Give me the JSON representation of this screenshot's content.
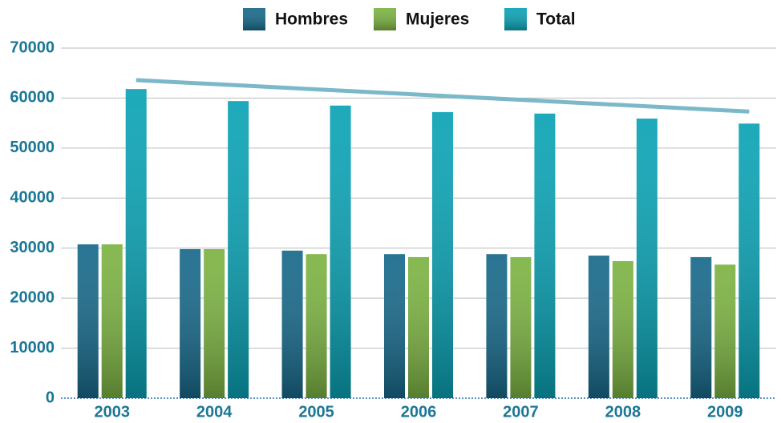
{
  "chart_data": {
    "type": "bar",
    "categories": [
      "2003",
      "2004",
      "2005",
      "2006",
      "2007",
      "2008",
      "2009"
    ],
    "series": [
      {
        "name": "Hombres",
        "color": "#17698a",
        "values": [
          30750,
          29800,
          29500,
          28800,
          28800,
          28500,
          28200
        ]
      },
      {
        "name": "Mujeres",
        "color": "#7cb342",
        "values": [
          30750,
          29800,
          28800,
          28200,
          28200,
          27400,
          26700
        ]
      },
      {
        "name": "Total",
        "color": "#0aa3b5",
        "values": [
          61800,
          59400,
          58500,
          57200,
          56900,
          55900,
          54900
        ]
      }
    ],
    "trend": {
      "color": "#7bb8c8",
      "values": [
        63600,
        57300
      ]
    },
    "ylim": [
      0,
      70000
    ],
    "yticks": [
      0,
      10000,
      20000,
      30000,
      40000,
      50000,
      60000,
      70000
    ],
    "grid": true,
    "legend": "top"
  }
}
